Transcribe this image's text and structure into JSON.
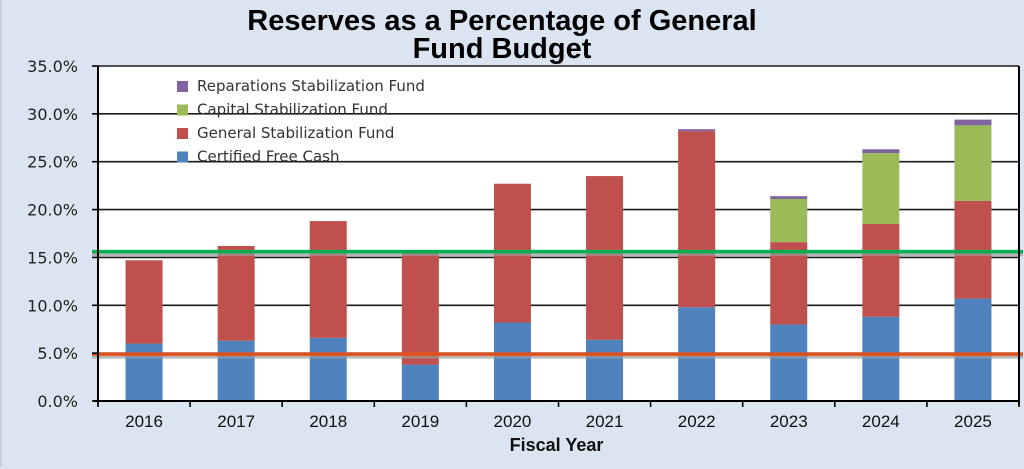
{
  "chart_data": {
    "type": "bar",
    "stacked": true,
    "title": "Reserves as a Percentage of General Fund Budget",
    "title_lines": [
      "Reserves as a Percentage of General",
      "Fund Budget"
    ],
    "xlabel": "Fiscal Year",
    "ylabel": "",
    "ylim": [
      0,
      35
    ],
    "yticks": [
      0,
      5,
      10,
      15,
      20,
      25,
      30,
      35
    ],
    "ytick_labels": [
      "0.0%",
      "5.0%",
      "10.0%",
      "15.0%",
      "20.0%",
      "25.0%",
      "30.0%",
      "35.0%"
    ],
    "grid": true,
    "legend_position": "top-left",
    "categories": [
      "2016",
      "2017",
      "2018",
      "2019",
      "2020",
      "2021",
      "2022",
      "2023",
      "2024",
      "2025"
    ],
    "series": [
      {
        "name": "Certified Free Cash",
        "color": "#4f81bd",
        "values": [
          6.0,
          6.3,
          6.6,
          3.8,
          8.2,
          6.4,
          9.8,
          8.0,
          8.8,
          10.7
        ]
      },
      {
        "name": "General Stabilization Fund",
        "color": "#c0504d",
        "values": [
          8.7,
          9.9,
          12.2,
          11.7,
          14.5,
          17.1,
          18.4,
          8.6,
          9.7,
          10.2
        ]
      },
      {
        "name": "Capital Stabilization Fund",
        "color": "#9bbb59",
        "values": [
          0,
          0,
          0,
          0,
          0,
          0,
          0,
          4.5,
          7.4,
          7.9
        ]
      },
      {
        "name": "Reparations Stabilization Fund",
        "color": "#8064a2",
        "values": [
          0,
          0,
          0,
          0,
          0,
          0,
          0.2,
          0.3,
          0.4,
          0.6
        ]
      }
    ],
    "legend_order": [
      "Reparations Stabilization Fund",
      "Capital Stabilization Fund",
      "General Stabilization Fund",
      "Certified Free Cash"
    ],
    "reference_lines": [
      {
        "name": "upper-target-line",
        "value": 15.6,
        "color": "#00b050"
      },
      {
        "name": "lower-target-line",
        "value": 4.9,
        "color": "#e0501c"
      }
    ]
  }
}
